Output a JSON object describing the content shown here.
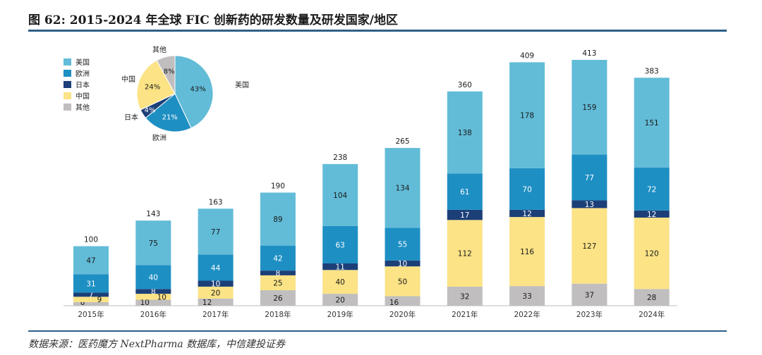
{
  "title": "图 62: 2015-2024 年全球 FIC 创新药的研发数量及研发国家/地区",
  "source": "数据来源：医药魔方 NextPharma 数据库，中信建投证券",
  "colors": {
    "美国": "#62bcd8",
    "欧洲": "#1e8fc3",
    "日本": "#1c3f78",
    "中国": "#fbe386",
    "其他": "#c0bebe"
  },
  "chart_data": [
    {
      "type": "bar",
      "stacked": true,
      "categories": [
        "2015年",
        "2016年",
        "2017年",
        "2018年",
        "2019年",
        "2020年",
        "2021年",
        "2022年",
        "2023年",
        "2024年"
      ],
      "series": [
        {
          "name": "其他",
          "values": [
            6,
            10,
            12,
            26,
            20,
            16,
            32,
            33,
            37,
            28
          ]
        },
        {
          "name": "中国",
          "values": [
            9,
            10,
            20,
            25,
            40,
            50,
            112,
            116,
            127,
            120
          ]
        },
        {
          "name": "日本",
          "values": [
            7,
            8,
            10,
            8,
            11,
            10,
            17,
            12,
            13,
            12
          ]
        },
        {
          "name": "欧洲",
          "values": [
            31,
            40,
            44,
            42,
            63,
            55,
            61,
            70,
            77,
            72
          ]
        },
        {
          "name": "美国",
          "values": [
            47,
            75,
            77,
            89,
            104,
            134,
            138,
            178,
            159,
            151
          ]
        }
      ],
      "totals": [
        100,
        143,
        163,
        190,
        238,
        265,
        360,
        409,
        413,
        383
      ],
      "ylim": [
        0,
        450
      ]
    },
    {
      "type": "pie",
      "labels": [
        "美国",
        "欧洲",
        "日本",
        "中国",
        "其他"
      ],
      "values": [
        43,
        21,
        4,
        24,
        8
      ],
      "value_labels": [
        "43%",
        "21%",
        "4%",
        "24%",
        "8%"
      ],
      "legend": [
        "美国",
        "欧洲",
        "日本",
        "中国",
        "其他"
      ]
    }
  ]
}
